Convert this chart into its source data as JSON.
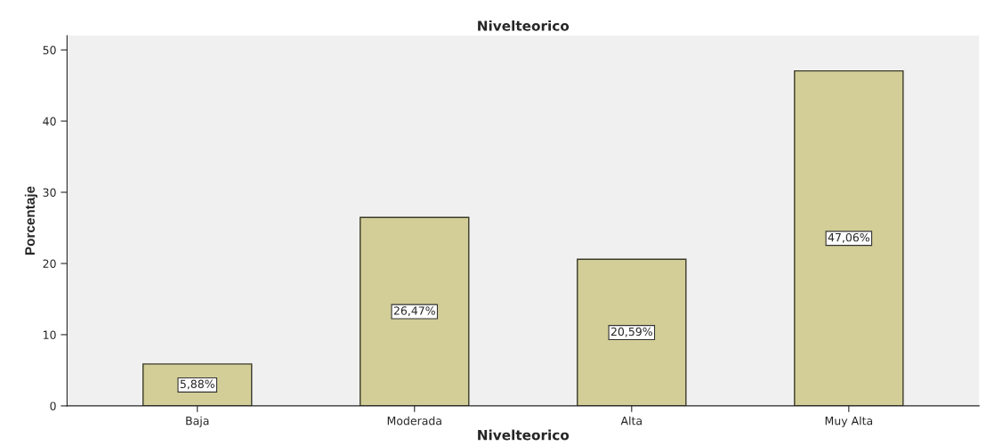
{
  "chart_data": {
    "type": "bar",
    "title": "Nivelteorico",
    "xlabel": "Nivelteorico",
    "ylabel": "Porcentaje",
    "categories": [
      "Baja",
      "Moderada",
      "Alta",
      "Muy Alta"
    ],
    "values": [
      5.88,
      26.47,
      20.59,
      47.06
    ],
    "value_labels": [
      "5,88%",
      "26,47%",
      "20,59%",
      "47,06%"
    ],
    "color": "#d3ce97",
    "ylim": [
      0,
      52
    ],
    "yticks": [
      0,
      10,
      20,
      30,
      40,
      50
    ],
    "grid": false,
    "legend": false
  }
}
